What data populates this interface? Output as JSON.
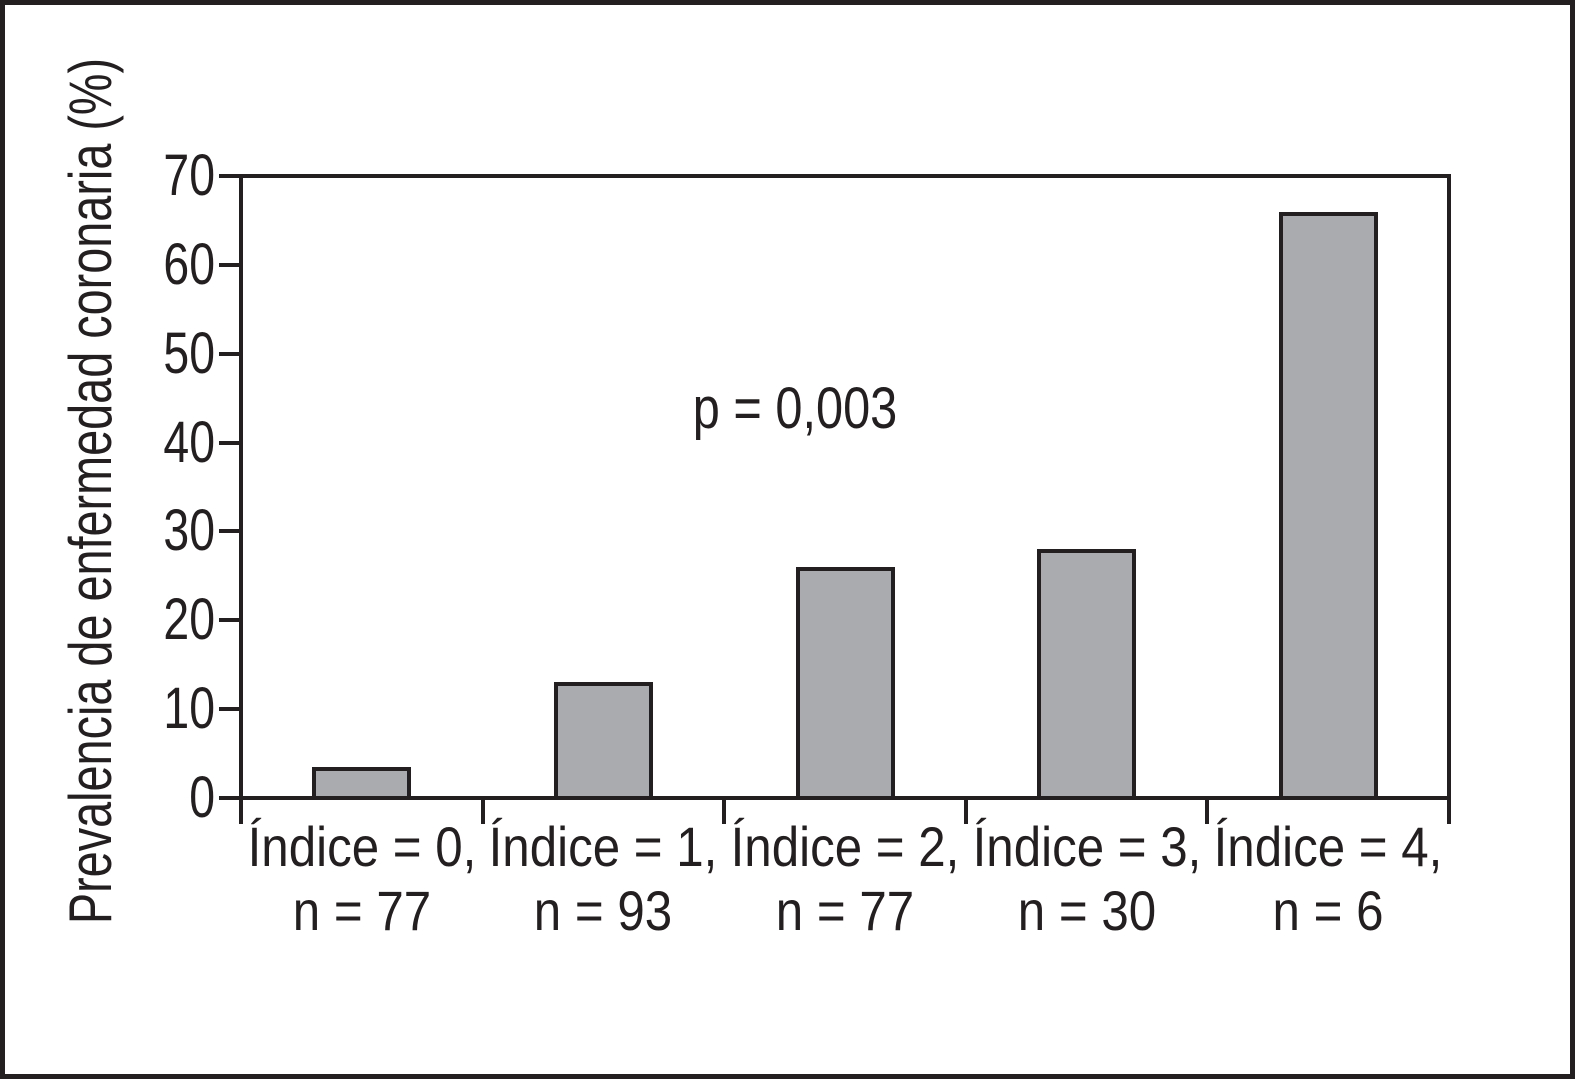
{
  "figure": {
    "background_color": "#ffffff",
    "frame_color": "#231f20"
  },
  "chart_data": {
    "type": "bar",
    "title": "",
    "xlabel": "",
    "ylabel": "Prevalencia de enfermedad coronaria (%)",
    "ylim": [
      0,
      70
    ],
    "yticks": [
      0,
      10,
      20,
      30,
      40,
      50,
      60,
      70
    ],
    "grid": false,
    "legend_position": "none",
    "annotation": "p = 0,003",
    "categories": [
      "Índice = 0,",
      "Índice = 1,",
      "Índice = 2,",
      "Índice = 3,",
      "Índice = 4,"
    ],
    "category_sublabels": [
      "n = 77",
      "n = 93",
      "n = 77",
      "n = 30",
      "n = 6"
    ],
    "values": [
      3.5,
      13,
      26,
      28,
      66
    ],
    "bar_fill_color": "#a9abae",
    "bar_border_color": "#231f20"
  }
}
